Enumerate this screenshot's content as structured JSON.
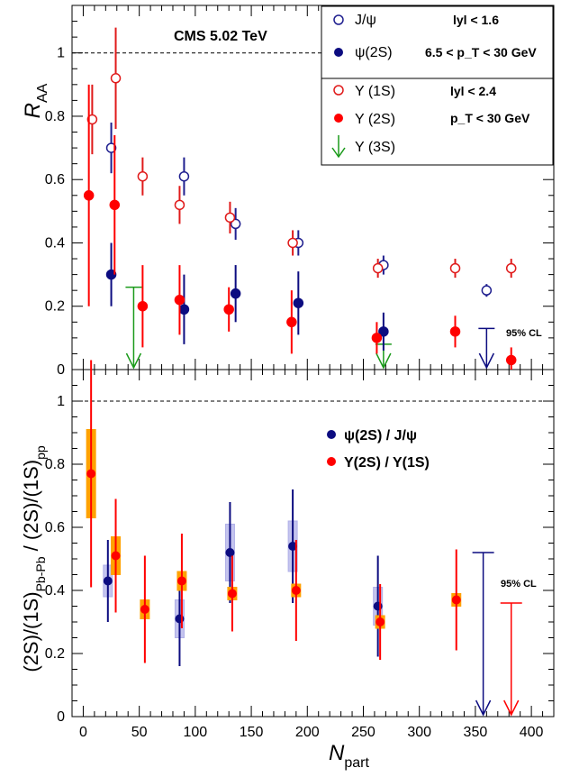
{
  "chart_data": [
    {
      "type": "scatter",
      "ylabel": "R_AA",
      "ylim": [
        0,
        1.15
      ],
      "xlim": [
        -10,
        420
      ],
      "annotation_title": "CMS  5.02 TeV",
      "reference_line": 1.0,
      "cl_label": "95% CL",
      "legend": {
        "jpsi": "J/ψ",
        "psi2s": "ψ(2S)",
        "cut_psi_1": "lyl < 1.6",
        "cut_psi_2": "6.5 < p_T < 30 GeV",
        "y1s": "Υ (1S)",
        "y2s": "Υ (2S)",
        "y3s": "Υ (3S)",
        "cut_y_1": "lyl < 2.4",
        "cut_y_2": "p_T < 30 GeV"
      },
      "yticks": [
        "0",
        "0.2",
        "0.4",
        "0.6",
        "0.8",
        "1"
      ],
      "series": [
        {
          "name": "J/ψ",
          "marker": "open-circle",
          "color": "#1f1f8f",
          "points": [
            [
              25,
              0.7,
              0.08
            ],
            [
              90,
              0.61,
              0.06
            ],
            [
              136,
              0.46,
              0.05
            ],
            [
              192,
              0.4,
              0.04
            ],
            [
              268,
              0.33,
              0.03
            ],
            [
              360,
              0.25,
              0.02
            ]
          ]
        },
        {
          "name": "ψ(2S)",
          "marker": "filled-circle",
          "color": "#0c0c80",
          "points": [
            [
              25,
              0.3,
              0.1
            ],
            [
              90,
              0.19,
              0.11
            ],
            [
              136,
              0.24,
              0.09
            ],
            [
              192,
              0.21,
              0.1
            ],
            [
              268,
              0.12,
              0.06
            ]
          ]
        },
        {
          "name": "Υ (1S)",
          "marker": "open-circle",
          "color": "#e01a1a",
          "points": [
            [
              8,
              0.79,
              0.11
            ],
            [
              29,
              0.92,
              0.16
            ],
            [
              53,
              0.61,
              0.06
            ],
            [
              86,
              0.52,
              0.06
            ],
            [
              131,
              0.48,
              0.05
            ],
            [
              187,
              0.4,
              0.04
            ],
            [
              263,
              0.32,
              0.03
            ],
            [
              332,
              0.32,
              0.03
            ],
            [
              382,
              0.32,
              0.03
            ]
          ]
        },
        {
          "name": "Υ (2S)",
          "marker": "filled-circle",
          "color": "#ff0000",
          "points": [
            [
              5,
              0.55,
              0.35
            ],
            [
              28,
              0.52,
              0.22
            ],
            [
              53,
              0.2,
              0.13
            ],
            [
              86,
              0.22,
              0.11
            ],
            [
              130,
              0.19,
              0.07
            ],
            [
              186,
              0.15,
              0.1
            ],
            [
              262,
              0.1,
              0.05
            ],
            [
              332,
              0.12,
              0.05
            ],
            [
              382,
              0.03,
              0.04
            ]
          ]
        }
      ],
      "upper_limits": [
        {
          "series": "Υ (3S)",
          "color": "#1a9a1a",
          "points": [
            [
              45,
              0.26
            ],
            [
              268,
              0.08
            ]
          ]
        },
        {
          "series": "ψ(2S) 95% CL",
          "color": "#0c0c80",
          "points": [
            [
              360,
              0.13
            ]
          ]
        }
      ]
    },
    {
      "type": "scatter",
      "ylabel": "(2S)/(1S)_Pb-Pb / (2S)/(1S)_pp",
      "xlabel": "N_part",
      "ylim": [
        0,
        1.1
      ],
      "xlim": [
        -10,
        420
      ],
      "reference_line": 1.0,
      "cl_label": "95% CL",
      "legend": {
        "psi_ratio": "ψ(2S) / J/ψ",
        "ups_ratio": "Υ(2S) / Υ(1S)"
      },
      "xticks": [
        "0",
        "50",
        "100",
        "150",
        "200",
        "250",
        "300",
        "350",
        "400"
      ],
      "yticks": [
        "0",
        "0.2",
        "0.4",
        "0.6",
        "0.8",
        "1"
      ],
      "series": [
        {
          "name": "ψ(2S) / J/ψ",
          "color": "#0c0c80",
          "box_color": "#b0b0e8",
          "points": [
            [
              22,
              0.43,
              0.13,
              0.05
            ],
            [
              86,
              0.31,
              0.15,
              0.06
            ],
            [
              131,
              0.52,
              0.16,
              0.09
            ],
            [
              187,
              0.54,
              0.18,
              0.08
            ],
            [
              263,
              0.35,
              0.16,
              0.06
            ]
          ]
        },
        {
          "name": "Υ(2S) / Υ(1S)",
          "color": "#ff0000",
          "box_color": "#ffa200",
          "points": [
            [
              7,
              0.77,
              0.36,
              0.14
            ],
            [
              29,
              0.51,
              0.18,
              0.06
            ],
            [
              55,
              0.34,
              0.17,
              0.03
            ],
            [
              88,
              0.43,
              0.15,
              0.03
            ],
            [
              133,
              0.39,
              0.12,
              0.02
            ],
            [
              190,
              0.4,
              0.16,
              0.02
            ],
            [
              265,
              0.3,
              0.12,
              0.02
            ],
            [
              333,
              0.37,
              0.16,
              0.02
            ]
          ]
        }
      ],
      "upper_limits": [
        {
          "series": "ψ(2S) / J/ψ",
          "color": "#0c0c80",
          "points": [
            [
              357,
              0.52
            ]
          ]
        },
        {
          "series": "Υ(2S) / Υ(1S)",
          "color": "#ff0000",
          "points": [
            [
              382,
              0.36
            ]
          ]
        }
      ]
    }
  ]
}
